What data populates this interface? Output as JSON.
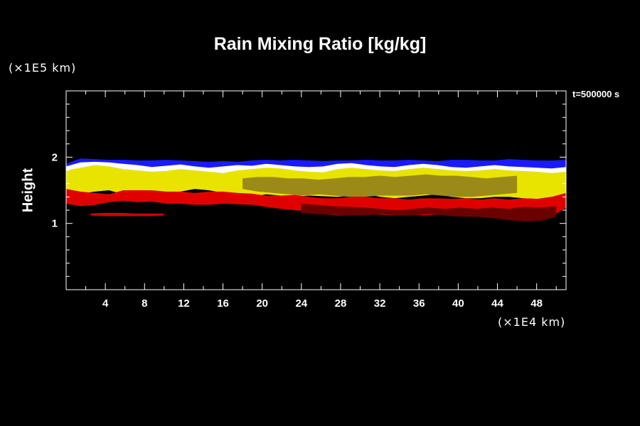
{
  "chart_data": {
    "type": "heatmap",
    "title": "Rain Mixing Ratio [kg/kg]",
    "ylabel": "Height",
    "y_unit": "(×1E5 km)",
    "x_unit": "(×1E4 km)",
    "time_label": "t=500000 s",
    "xlim": [
      0,
      51
    ],
    "ylim": [
      0,
      3
    ],
    "x_ticks": [
      4,
      8,
      12,
      16,
      20,
      24,
      28,
      32,
      36,
      40,
      44,
      48
    ],
    "y_ticks": [
      1,
      2
    ],
    "grid": false,
    "layers": [
      {
        "color": "#1a1aff",
        "top": [
          1.9,
          1.98,
          1.97,
          1.96,
          1.96,
          1.95,
          1.95,
          1.96,
          1.95,
          1.94,
          1.93,
          1.94,
          1.93,
          1.95,
          1.96,
          1.95,
          1.96,
          1.95,
          1.94,
          1.95,
          1.95,
          1.96,
          1.95,
          1.95,
          1.96,
          1.95,
          1.94,
          1.96,
          1.96,
          1.95,
          1.95,
          1.97,
          1.96,
          1.95,
          1.95,
          1.96
        ],
        "bottom": [
          1.7,
          1.78,
          1.82,
          1.85,
          1.84,
          1.82,
          1.83,
          1.85,
          1.84,
          1.83,
          1.82,
          1.83,
          1.82,
          1.83,
          1.84,
          1.82,
          1.83,
          1.84,
          1.83,
          1.84,
          1.84,
          1.85,
          1.84,
          1.83,
          1.84,
          1.82,
          1.83,
          1.84,
          1.83,
          1.82,
          1.83,
          1.84,
          1.83,
          1.82,
          1.83,
          1.8
        ]
      },
      {
        "color": "#ffffff",
        "top": [
          1.86,
          1.92,
          1.93,
          1.92,
          1.9,
          1.88,
          1.85,
          1.87,
          1.89,
          1.86,
          1.84,
          1.86,
          1.88,
          1.87,
          1.9,
          1.88,
          1.86,
          1.85,
          1.86,
          1.9,
          1.91,
          1.88,
          1.86,
          1.85,
          1.88,
          1.9,
          1.88,
          1.85,
          1.84,
          1.86,
          1.88,
          1.86,
          1.85,
          1.84,
          1.83,
          1.85
        ],
        "bottom": [
          1.72,
          1.76,
          1.78,
          1.75,
          1.72,
          1.7,
          1.72,
          1.74,
          1.76,
          1.73,
          1.72,
          1.73,
          1.75,
          1.74,
          1.76,
          1.75,
          1.73,
          1.74,
          1.73,
          1.76,
          1.77,
          1.75,
          1.73,
          1.74,
          1.75,
          1.76,
          1.75,
          1.73,
          1.74,
          1.75,
          1.76,
          1.75,
          1.74,
          1.73,
          1.72,
          1.7
        ]
      },
      {
        "color": "#e8e400",
        "top": [
          1.8,
          1.84,
          1.88,
          1.86,
          1.82,
          1.8,
          1.78,
          1.79,
          1.82,
          1.8,
          1.78,
          1.76,
          1.8,
          1.82,
          1.84,
          1.83,
          1.8,
          1.78,
          1.77,
          1.82,
          1.84,
          1.82,
          1.8,
          1.79,
          1.82,
          1.84,
          1.82,
          1.8,
          1.79,
          1.8,
          1.82,
          1.8,
          1.79,
          1.78,
          1.76,
          1.78
        ],
        "bottom": [
          1.52,
          1.45,
          1.48,
          1.5,
          1.44,
          1.42,
          1.46,
          1.44,
          1.48,
          1.52,
          1.5,
          1.46,
          1.42,
          1.4,
          1.44,
          1.42,
          1.4,
          1.42,
          1.41,
          1.4,
          1.42,
          1.44,
          1.4,
          1.38,
          1.4,
          1.42,
          1.44,
          1.4,
          1.38,
          1.38,
          1.4,
          1.4,
          1.38,
          1.37,
          1.4,
          1.44
        ]
      },
      {
        "color": "#9c8a18",
        "top": [
          1.68,
          1.7,
          1.7,
          1.68,
          1.68,
          1.66,
          1.68,
          1.7,
          1.7,
          1.72,
          1.7,
          1.72,
          1.74,
          1.72,
          1.72,
          1.7,
          1.68,
          1.7,
          1.72
        ],
        "bottom": [
          1.52,
          1.48,
          1.46,
          1.44,
          1.42,
          1.44,
          1.42,
          1.4,
          1.4,
          1.42,
          1.42,
          1.42,
          1.44,
          1.42,
          1.4,
          1.4,
          1.42,
          1.44,
          1.46
        ],
        "x_range": [
          18,
          46
        ]
      },
      {
        "color": "#e00000",
        "top": [
          1.52,
          1.48,
          1.46,
          1.44,
          1.5,
          1.5,
          1.5,
          1.48,
          1.48,
          1.46,
          1.48,
          1.48,
          1.46,
          1.45,
          1.42,
          1.42,
          1.43,
          1.4,
          1.38,
          1.38,
          1.4,
          1.4,
          1.38,
          1.38,
          1.36,
          1.38,
          1.38,
          1.37,
          1.38,
          1.36,
          1.38,
          1.36,
          1.38,
          1.37,
          1.4,
          1.46
        ],
        "bottom": [
          1.3,
          1.26,
          1.28,
          1.32,
          1.34,
          1.32,
          1.33,
          1.3,
          1.3,
          1.28,
          1.28,
          1.3,
          1.29,
          1.28,
          1.25,
          1.22,
          1.2,
          1.18,
          1.14,
          1.12,
          1.12,
          1.14,
          1.13,
          1.12,
          1.14,
          1.12,
          1.13,
          1.14,
          1.12,
          1.1,
          1.08,
          1.06,
          1.04,
          1.05,
          1.1,
          1.24
        ]
      },
      {
        "color": "#6a0000",
        "top": [
          1.3,
          1.28,
          1.26,
          1.25,
          1.24,
          1.22,
          1.2,
          1.22,
          1.24,
          1.22,
          1.24,
          1.22,
          1.24,
          1.22,
          1.25,
          1.24,
          1.26
        ],
        "bottom": [
          1.16,
          1.14,
          1.13,
          1.12,
          1.12,
          1.14,
          1.12,
          1.12,
          1.14,
          1.12,
          1.1,
          1.1,
          1.08,
          1.05,
          1.03,
          1.04,
          1.1
        ],
        "x_range": [
          24,
          50
        ]
      },
      {
        "color": "#d40000",
        "top": [
          1.15,
          1.16,
          1.16,
          1.15,
          1.15,
          1.15
        ],
        "bottom": [
          1.12,
          1.11,
          1.11,
          1.11,
          1.11,
          1.12
        ],
        "x_range": [
          2.5,
          10
        ]
      }
    ]
  }
}
